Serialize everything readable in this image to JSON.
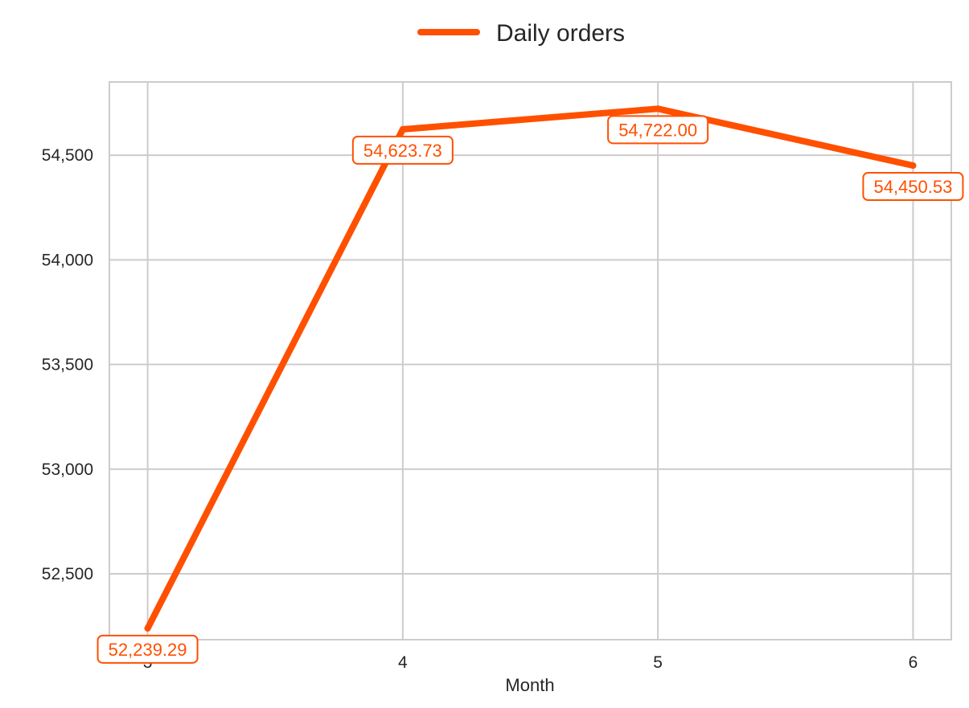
{
  "chart_data": {
    "type": "line",
    "title": "",
    "xlabel": "Month",
    "ylabel": "",
    "x": [
      3,
      4,
      5,
      6
    ],
    "x_tick_labels": [
      "3",
      "4",
      "5",
      "6"
    ],
    "series": [
      {
        "name": "Daily orders",
        "values": [
          52239.29,
          54623.73,
          54722.0,
          54450.53
        ],
        "data_labels": [
          "52,239.29",
          "54,623.73",
          "54,722.00",
          "54,450.53"
        ],
        "color": "#ff5000"
      }
    ],
    "y_ticks": [
      52500,
      53000,
      53500,
      54000,
      54500
    ],
    "y_tick_labels": [
      "52,500",
      "53,000",
      "53,500",
      "54,000",
      "54,500"
    ],
    "xlim": [
      2.85,
      6.15
    ],
    "ylim": [
      52185,
      54850
    ],
    "grid": true,
    "legend_position": "top-center"
  },
  "colors": {
    "series": "#ff5000",
    "grid": "#cccccc",
    "frame": "#cccccc",
    "text": "#262626",
    "background": "#ffffff"
  }
}
